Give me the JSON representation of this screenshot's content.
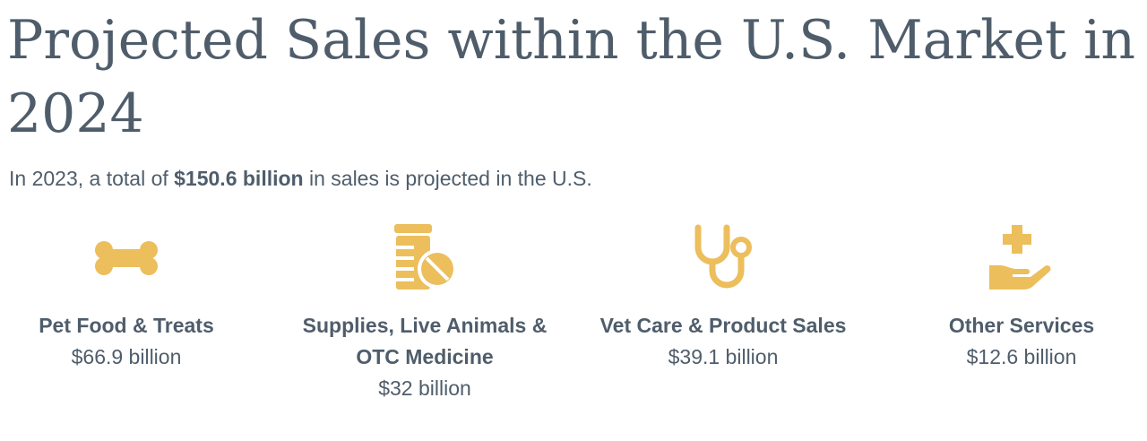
{
  "title": "Projected Sales within the U.S. Market in 2024",
  "subtitle": {
    "prefix": "In 2023, a total of ",
    "highlight": "$150.6 billion",
    "suffix": " in sales is projected in the U.S."
  },
  "colors": {
    "accent": "#ecbe5c",
    "text": "#4f5d6b"
  },
  "categories": [
    {
      "icon": "bone-icon",
      "label": "Pet Food & Treats",
      "value": "$66.9 billion"
    },
    {
      "icon": "pill-bottle-icon",
      "label": "Supplies, Live Animals & OTC Medicine",
      "value": "$32 billion"
    },
    {
      "icon": "stethoscope-icon",
      "label": "Vet Care & Product Sales",
      "value": "$39.1 billion"
    },
    {
      "icon": "hand-medical-icon",
      "label": "Other Services",
      "value": "$12.6 billion"
    }
  ]
}
